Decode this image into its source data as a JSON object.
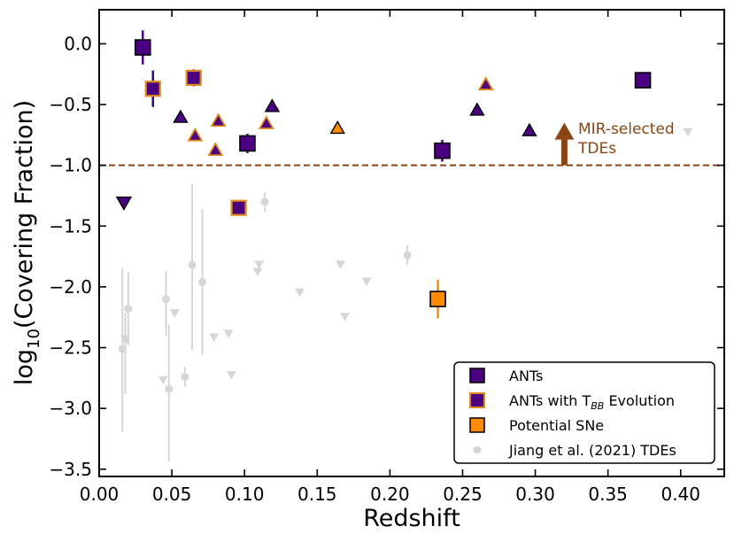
{
  "chart_data": {
    "type": "scatter",
    "title": "",
    "xlabel": "Redshift",
    "ylabel": "log10(Covering Fraction)",
    "ylabel_base": "log",
    "ylabel_sub": "10",
    "ylabel_rest": "(Covering Fraction)",
    "xlim": [
      0.0,
      0.43
    ],
    "ylim": [
      -3.56,
      0.28
    ],
    "xticks": [
      0.0,
      0.05,
      0.1,
      0.15,
      0.2,
      0.25,
      0.3,
      0.35,
      0.4
    ],
    "xtick_labels": [
      "0.00",
      "0.05",
      "0.10",
      "0.15",
      "0.20",
      "0.25",
      "0.30",
      "0.35",
      "0.40"
    ],
    "yticks": [
      0.0,
      -0.5,
      -1.0,
      -1.5,
      -2.0,
      -2.5,
      -3.0,
      -3.5
    ],
    "ytick_labels": [
      "0.0",
      "−0.5",
      "−1.0",
      "−1.5",
      "−2.0",
      "−2.5",
      "−3.0",
      "−3.5"
    ],
    "grid": false,
    "threshold": {
      "y": -1.0,
      "color": "#8B4513",
      "style": "dashed"
    },
    "annotation": {
      "text_line1": "MIR-selected",
      "text_line2": "TDEs",
      "arrow_x": 0.32,
      "arrow_from": -1.0,
      "arrow_to": -0.65,
      "color": "#8B4513"
    },
    "colors": {
      "ants_fill": "#4B0082",
      "tbb_edge": "#E08A1E",
      "sne_fill": "#FF8C00",
      "jiang": "#D6D6D6",
      "ant_err": "#4B0082",
      "sne_err": "#FF8C00"
    },
    "series": [
      {
        "name": "ANTs",
        "marker": "square",
        "points": [
          {
            "x": 0.03,
            "y": -0.03,
            "yerr": 0.14
          },
          {
            "x": 0.102,
            "y": -0.82,
            "yerr": 0.08
          },
          {
            "x": 0.236,
            "y": -0.88,
            "yerr": 0.09
          },
          {
            "x": 0.374,
            "y": -0.3,
            "yerr": 0.05
          }
        ]
      },
      {
        "name": "ANTs triangles",
        "marker": "triangle-up",
        "points": [
          {
            "x": 0.056,
            "y": -0.61
          },
          {
            "x": 0.119,
            "y": -0.52
          },
          {
            "x": 0.26,
            "y": -0.55
          },
          {
            "x": 0.296,
            "y": -0.72
          }
        ]
      },
      {
        "name": "ANTs upper limits",
        "marker": "triangle-down",
        "points": [
          {
            "x": 0.017,
            "y": -1.3
          }
        ]
      },
      {
        "name": "ANTs with T_BB Evolution",
        "marker": "square",
        "points": [
          {
            "x": 0.037,
            "y": -0.37,
            "yerr": 0.15
          },
          {
            "x": 0.065,
            "y": -0.28,
            "yerr": 0.07
          },
          {
            "x": 0.096,
            "y": -1.35,
            "yerr": 0.0
          }
        ]
      },
      {
        "name": "ANTs with T_BB Evolution triangles",
        "marker": "triangle-up",
        "points": [
          {
            "x": 0.066,
            "y": -0.76
          },
          {
            "x": 0.082,
            "y": -0.64
          },
          {
            "x": 0.08,
            "y": -0.88
          },
          {
            "x": 0.115,
            "y": -0.66
          },
          {
            "x": 0.266,
            "y": -0.34
          }
        ]
      },
      {
        "name": "Potential SNe",
        "marker": "square",
        "points": [
          {
            "x": 0.233,
            "y": -2.1,
            "yerr": 0.16
          }
        ]
      },
      {
        "name": "Potential SNe triangles",
        "marker": "triangle-up",
        "points": [
          {
            "x": 0.164,
            "y": -0.7
          }
        ]
      },
      {
        "name": "Jiang et al. (2021) TDEs",
        "marker": "circle",
        "points": [
          {
            "x": 0.016,
            "y": -2.51,
            "ylo": 0.68,
            "yhi": 0.66
          },
          {
            "x": 0.018,
            "y": -2.43,
            "ylo": 0.45,
            "yhi": 0.22
          },
          {
            "x": 0.02,
            "y": -2.18,
            "ylo": 0.3,
            "yhi": 0.3
          },
          {
            "x": 0.046,
            "y": -2.1,
            "ylo": 0.3,
            "yhi": 0.23
          },
          {
            "x": 0.048,
            "y": -2.84,
            "ylo": 0.6,
            "yhi": 0.53
          },
          {
            "x": 0.059,
            "y": -2.74,
            "ylo": 0.08,
            "yhi": 0.08
          },
          {
            "x": 0.064,
            "y": -1.82,
            "ylo": 0.7,
            "yhi": 0.67
          },
          {
            "x": 0.071,
            "y": -1.96,
            "ylo": 0.6,
            "yhi": 0.6
          },
          {
            "x": 0.114,
            "y": -1.3,
            "ylo": 0.08,
            "yhi": 0.08
          },
          {
            "x": 0.212,
            "y": -1.74,
            "ylo": 0.08,
            "yhi": 0.08
          }
        ]
      },
      {
        "name": "Jiang et al. (2021) TDE upper limits",
        "marker": "triangle-down",
        "points": [
          {
            "x": 0.044,
            "y": -2.76
          },
          {
            "x": 0.052,
            "y": -2.21
          },
          {
            "x": 0.079,
            "y": -2.41
          },
          {
            "x": 0.089,
            "y": -2.38
          },
          {
            "x": 0.091,
            "y": -2.72
          },
          {
            "x": 0.109,
            "y": -1.87
          },
          {
            "x": 0.11,
            "y": -1.81
          },
          {
            "x": 0.138,
            "y": -2.04
          },
          {
            "x": 0.166,
            "y": -1.81
          },
          {
            "x": 0.169,
            "y": -2.24
          },
          {
            "x": 0.184,
            "y": -1.95
          },
          {
            "x": 0.405,
            "y": -0.72
          }
        ]
      }
    ],
    "legend": {
      "position": "lower-right",
      "entries": [
        {
          "label": "ANTs",
          "style": "ants"
        },
        {
          "label_main": "ANTs with T",
          "label_sub": "BB",
          "label_rest": " Evolution",
          "style": "tbb"
        },
        {
          "label": "Potential SNe",
          "style": "sne"
        },
        {
          "label": "Jiang et al. (2021) TDEs",
          "style": "jiang"
        }
      ]
    }
  }
}
